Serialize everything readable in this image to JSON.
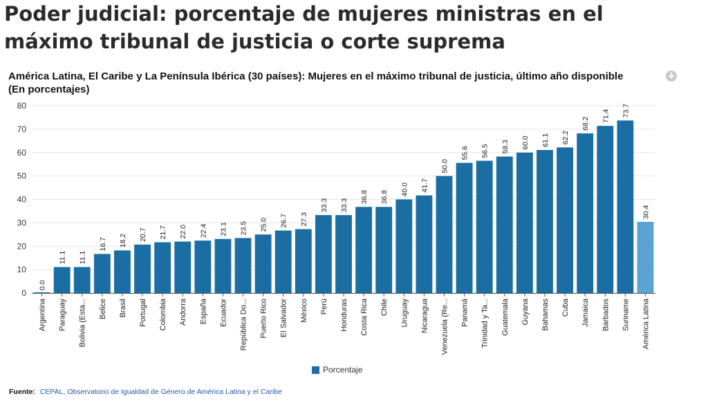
{
  "page": {
    "title": "Poder judicial: porcentaje de mujeres ministras en el máximo tribunal de justicia o corte suprema"
  },
  "chart_data": {
    "type": "bar",
    "title": "América Latina, El Caribe y La Península Ibérica (30 países): Mujeres en el máximo tribunal de justicia, último año disponible",
    "subtitle": "(En porcentajes)",
    "categories": [
      "Argentina",
      "Paraguay",
      "Bolivia (Esta...",
      "Belice",
      "Brasil",
      "Portugal",
      "Colombia",
      "Andorra",
      "España",
      "Ecuador",
      "República Do...",
      "Puerto Rico",
      "El Salvador",
      "México",
      "Perú",
      "Honduras",
      "Costa Rica",
      "Chile",
      "Uruguay",
      "Nicaragua",
      "Venezuela (Re...",
      "Panamá",
      "Trinidad y Ta...",
      "Guatemala",
      "Guyana",
      "Bahamas",
      "Cuba",
      "Jamaica",
      "Barbados",
      "Suriname",
      "América Latina"
    ],
    "series": [
      {
        "name": "Porcentaje",
        "values": [
          0.0,
          11.1,
          11.1,
          16.7,
          18.2,
          20.7,
          21.7,
          22.0,
          22.4,
          23.1,
          23.5,
          25.0,
          26.7,
          27.3,
          33.3,
          33.3,
          36.8,
          36.8,
          40.0,
          41.7,
          50.0,
          55.6,
          56.5,
          58.3,
          60.0,
          61.1,
          62.2,
          68.2,
          71.4,
          73.7,
          30.4
        ],
        "labels": [
          "0.0",
          "11.1",
          "11.1",
          "16.7",
          "18.2",
          "20.7",
          "21.7",
          "22.0",
          "22.4",
          "23.1",
          "23.5",
          "25.0",
          "26.7",
          "27.3",
          "33.3",
          "33.3",
          "36.8",
          "36.8",
          "40.0",
          "41.7",
          "50.0",
          "55.6",
          "56.5",
          "58.3",
          "60.0",
          "61.1",
          "62.2",
          "68.2",
          "71.4",
          "73.7",
          "30.4"
        ]
      }
    ],
    "highlight_category": "América Latina",
    "ylim": [
      0,
      80
    ],
    "yticks": [
      "0",
      "10",
      "20",
      "30",
      "40",
      "50",
      "60",
      "70",
      "80"
    ],
    "grid": true,
    "legend_position": "bottom-center",
    "colors": {
      "bar": "#1b6ea3",
      "highlight": "#5aa3d3",
      "grid": "#e6e6e6",
      "axis": "#555555"
    }
  },
  "legend": {
    "label": "Porcentaje"
  },
  "source": {
    "label": "Fuente:",
    "text": "CEPAL, Observatorio de Igualdad de Género de América Latina y el Caribe"
  },
  "icons": {
    "download": "download-icon"
  }
}
